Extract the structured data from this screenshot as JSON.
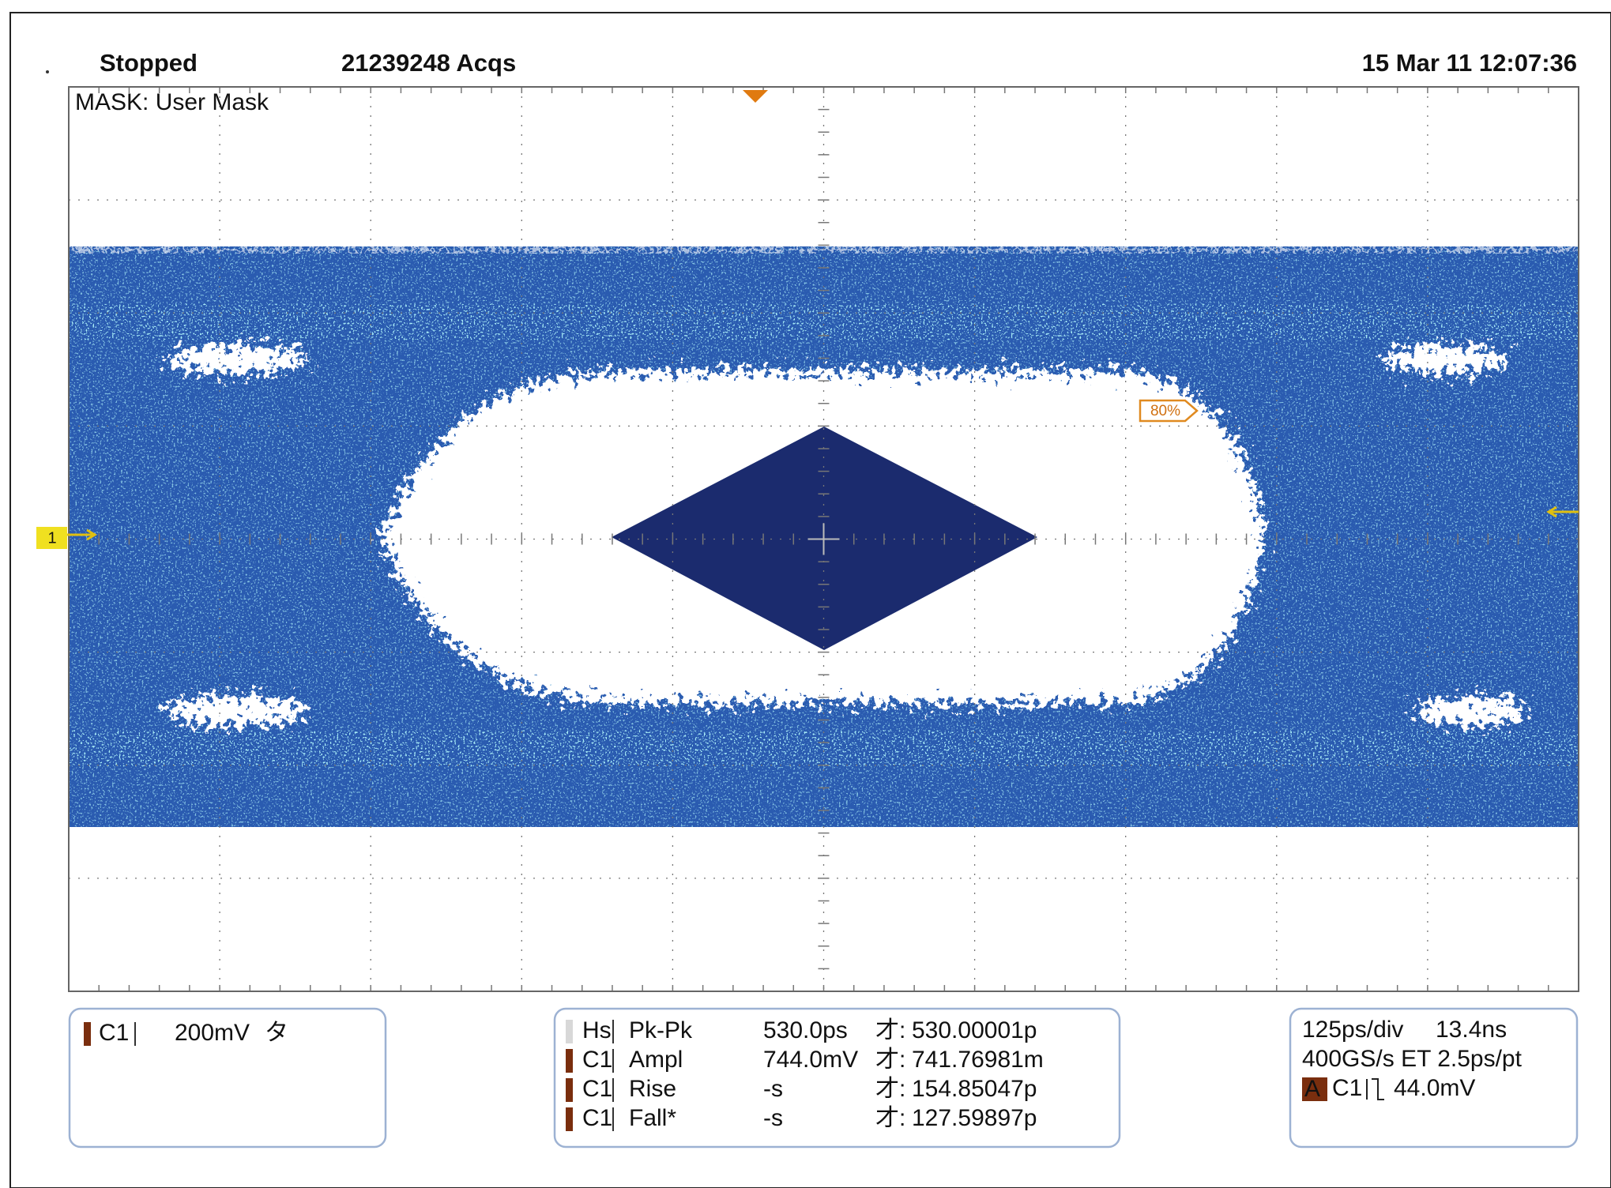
{
  "header": {
    "status": "Stopped",
    "acquisitions": "21239248 Acqs",
    "datetime": "15 Mar 11 12:07:36"
  },
  "display": {
    "mask_label": "MASK: User Mask",
    "channel_marker": "1",
    "threshold_tag": "80%"
  },
  "channel_panel": {
    "source": "C1",
    "scale": "200mV",
    "coupling": "タ"
  },
  "measurements": {
    "rows": [
      [
        "Hs",
        "Pk-Pk",
        "530.0ps",
        "才:",
        "530.00001p"
      ],
      [
        "C1",
        "Ampl",
        "744.0mV",
        "才:",
        "741.76981m"
      ],
      [
        "C1",
        "Rise",
        "-s",
        "才:",
        "154.85047p"
      ],
      [
        "C1",
        "Fall*",
        "-s",
        "才:",
        "127.59897p"
      ]
    ]
  },
  "timebase_panel": {
    "time_div": "125ps/div",
    "delay": "13.4ns",
    "sample": "400GS/s ET 2.5ps/pt",
    "trigger_tag": "A",
    "trigger_source": "C1",
    "trigger_level": "44.0mV"
  }
}
